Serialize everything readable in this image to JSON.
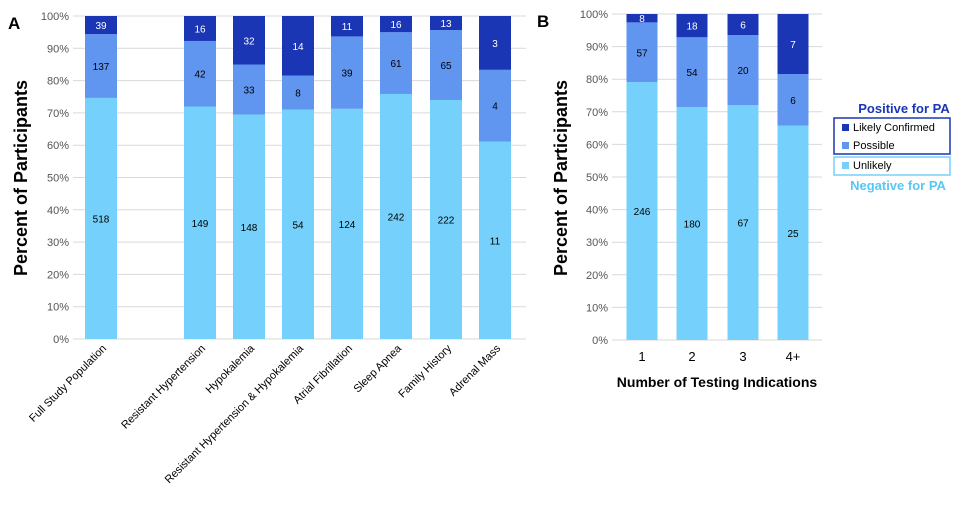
{
  "colors": {
    "unlikely": "#75d1fb",
    "possible": "#6096f0",
    "likely": "#1b36b4",
    "gridline": "#d9d9d9",
    "axis_text": "#555555",
    "positive_heading": "#1b36b4",
    "negative_heading": "#57c8f5"
  },
  "legend": {
    "positive_heading": "Positive for PA",
    "negative_heading": "Negative for PA",
    "likely": "Likely Confirmed",
    "possible": "Possible",
    "unlikely": "Unlikely"
  },
  "chart_data": [
    {
      "panel_label": "A",
      "type": "bar",
      "stacked": "percent",
      "ylabel": "Percent of Participants",
      "xlabel": "",
      "ylim": [
        0,
        100
      ],
      "yticks": [
        "0%",
        "10%",
        "20%",
        "30%",
        "40%",
        "50%",
        "60%",
        "70%",
        "80%",
        "90%",
        "100%"
      ],
      "grid": true,
      "categories": [
        "Full Study Population",
        "Resistant Hypertension",
        "Hypokalemia",
        "Resistant Hypertension & Hypokalemia",
        "Atrial Fibrillation",
        "Sleep Apnea",
        "Family History",
        "Adrenal Mass"
      ],
      "series": [
        {
          "name": "Unlikely",
          "values": [
            518,
            149,
            148,
            54,
            124,
            242,
            222,
            11
          ]
        },
        {
          "name": "Possible",
          "values": [
            137,
            42,
            33,
            8,
            39,
            61,
            65,
            4
          ]
        },
        {
          "name": "Likely Confirmed",
          "values": [
            39,
            16,
            32,
            14,
            11,
            16,
            13,
            3
          ]
        }
      ]
    },
    {
      "panel_label": "B",
      "type": "bar",
      "stacked": "percent",
      "ylabel": "Percent of Participants",
      "xlabel": "Number of Testing Indications",
      "ylim": [
        0,
        100
      ],
      "yticks": [
        "0%",
        "10%",
        "20%",
        "30%",
        "40%",
        "50%",
        "60%",
        "70%",
        "80%",
        "90%",
        "100%"
      ],
      "grid": true,
      "categories": [
        "1",
        "2",
        "3",
        "4+"
      ],
      "series": [
        {
          "name": "Unlikely",
          "values": [
            246,
            180,
            67,
            25
          ]
        },
        {
          "name": "Possible",
          "values": [
            57,
            54,
            20,
            6
          ]
        },
        {
          "name": "Likely Confirmed",
          "values": [
            8,
            18,
            6,
            7
          ]
        }
      ]
    }
  ]
}
